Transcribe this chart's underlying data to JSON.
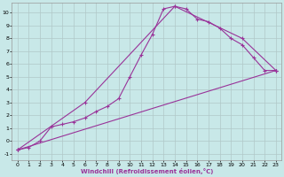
{
  "xlabel": "Windchill (Refroidissement éolien,°C)",
  "bg_color": "#c8e8e8",
  "grid_color": "#b0c8c8",
  "line_color": "#993399",
  "xlim": [
    -0.5,
    23.5
  ],
  "ylim": [
    -1.5,
    10.8
  ],
  "xticks": [
    0,
    1,
    2,
    3,
    4,
    5,
    6,
    7,
    8,
    9,
    10,
    11,
    12,
    13,
    14,
    15,
    16,
    17,
    18,
    19,
    20,
    21,
    22,
    23
  ],
  "yticks": [
    -1,
    0,
    1,
    2,
    3,
    4,
    5,
    6,
    7,
    8,
    9,
    10
  ],
  "line1_x": [
    0,
    1,
    2,
    3,
    4,
    5,
    6,
    7,
    8,
    9,
    10,
    11,
    12,
    13,
    14,
    15,
    16,
    17,
    18,
    19,
    20,
    21,
    22,
    23
  ],
  "line1_y": [
    -0.7,
    -0.5,
    0.0,
    1.1,
    1.3,
    1.5,
    1.8,
    2.3,
    2.7,
    3.3,
    5.0,
    6.7,
    8.3,
    10.3,
    10.5,
    10.3,
    9.5,
    9.3,
    8.8,
    8.0,
    7.5,
    6.5,
    5.5,
    5.5
  ],
  "line2_x": [
    0,
    23
  ],
  "line2_y": [
    -0.7,
    5.5
  ],
  "line3_x": [
    0,
    6,
    14,
    20,
    23
  ],
  "line3_y": [
    -0.7,
    3.0,
    10.5,
    8.0,
    5.5
  ]
}
